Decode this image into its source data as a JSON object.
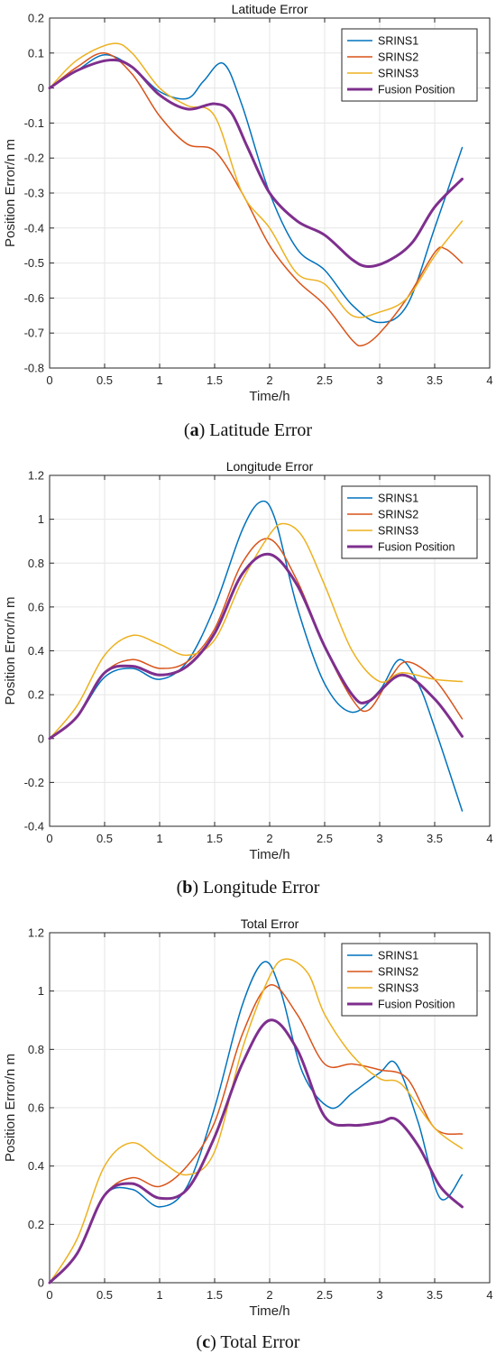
{
  "chart_data": [
    {
      "type": "line",
      "title": "Latitude Error",
      "xlabel": "Time/h",
      "ylabel": "Position Error/n m",
      "xlim": [
        0,
        4
      ],
      "ylim": [
        -0.8,
        0.2
      ],
      "xticks": [
        "0",
        "0.5",
        "1",
        "1.5",
        "2",
        "2.5",
        "3",
        "3.5",
        "4"
      ],
      "yticks": [
        "-0.8",
        "-0.7",
        "-0.6",
        "-0.5",
        "-0.4",
        "-0.3",
        "-0.2",
        "-0.1",
        "0",
        "0.1",
        "0.2"
      ],
      "grid": true,
      "legend": "top-right",
      "caption_letter": "a",
      "caption_text": " Latitude Error",
      "series": [
        {
          "name": "SRINS1",
          "color": "#0072BD",
          "x": [
            0,
            0.25,
            0.5,
            0.75,
            1,
            1.25,
            1.4,
            1.58,
            1.75,
            2,
            2.25,
            2.5,
            2.75,
            3,
            3.25,
            3.5,
            3.75
          ],
          "y": [
            0,
            0.05,
            0.095,
            0.06,
            -0.01,
            -0.03,
            0.02,
            0.07,
            -0.05,
            -0.3,
            -0.46,
            -0.52,
            -0.62,
            -0.67,
            -0.62,
            -0.4,
            -0.17
          ]
        },
        {
          "name": "SRINS2",
          "color": "#D95319",
          "x": [
            0,
            0.25,
            0.5,
            0.75,
            1,
            1.25,
            1.5,
            1.75,
            2,
            2.25,
            2.5,
            2.75,
            2.85,
            3,
            3.25,
            3.5,
            3.6,
            3.75
          ],
          "y": [
            0,
            0.06,
            0.1,
            0.04,
            -0.08,
            -0.16,
            -0.18,
            -0.3,
            -0.45,
            -0.55,
            -0.62,
            -0.72,
            -0.735,
            -0.7,
            -0.6,
            -0.47,
            -0.46,
            -0.5
          ]
        },
        {
          "name": "SRINS3",
          "color": "#EDB120",
          "x": [
            0,
            0.25,
            0.57,
            0.75,
            1,
            1.25,
            1.5,
            1.75,
            2,
            2.25,
            2.5,
            2.75,
            3,
            3.25,
            3.5,
            3.75
          ],
          "y": [
            0,
            0.08,
            0.127,
            0.1,
            0,
            -0.05,
            -0.08,
            -0.3,
            -0.4,
            -0.53,
            -0.56,
            -0.65,
            -0.64,
            -0.6,
            -0.48,
            -0.38
          ]
        },
        {
          "name": "Fusion Position",
          "color": "#7E2F8E",
          "x": [
            0,
            0.25,
            0.55,
            0.75,
            1,
            1.25,
            1.5,
            1.65,
            1.8,
            2,
            2.25,
            2.5,
            2.75,
            2.9,
            3.1,
            3.3,
            3.5,
            3.75
          ],
          "y": [
            0,
            0.05,
            0.08,
            0.06,
            -0.02,
            -0.06,
            -0.045,
            -0.07,
            -0.17,
            -0.3,
            -0.38,
            -0.42,
            -0.49,
            -0.51,
            -0.49,
            -0.44,
            -0.34,
            -0.26
          ]
        }
      ]
    },
    {
      "type": "line",
      "title": "Longitude Error",
      "xlabel": "Time/h",
      "ylabel": "Position Error/n m",
      "xlim": [
        0,
        4
      ],
      "ylim": [
        -0.4,
        1.2
      ],
      "xticks": [
        "0",
        "0.5",
        "1",
        "1.5",
        "2",
        "2.5",
        "3",
        "3.5",
        "4"
      ],
      "yticks": [
        "-0.4",
        "-0.2",
        "0",
        "0.2",
        "0.4",
        "0.6",
        "0.8",
        "1",
        "1.2"
      ],
      "grid": true,
      "legend": "top-right",
      "caption_letter": "b",
      "caption_text": " Longitude Error",
      "series": [
        {
          "name": "SRINS1",
          "color": "#0072BD",
          "x": [
            0,
            0.25,
            0.5,
            0.75,
            1,
            1.25,
            1.5,
            1.75,
            1.92,
            2.05,
            2.25,
            2.5,
            2.75,
            3,
            3.18,
            3.35,
            3.5,
            3.75
          ],
          "y": [
            0,
            0.1,
            0.28,
            0.32,
            0.27,
            0.35,
            0.6,
            0.95,
            1.08,
            1.0,
            0.6,
            0.25,
            0.12,
            0.22,
            0.36,
            0.25,
            0.05,
            -0.33
          ]
        },
        {
          "name": "SRINS2",
          "color": "#D95319",
          "x": [
            0,
            0.25,
            0.5,
            0.75,
            1,
            1.25,
            1.5,
            1.75,
            2,
            2.25,
            2.5,
            2.75,
            2.9,
            3.1,
            3.25,
            3.5,
            3.75
          ],
          "y": [
            0,
            0.1,
            0.3,
            0.36,
            0.32,
            0.35,
            0.5,
            0.8,
            0.91,
            0.72,
            0.42,
            0.18,
            0.13,
            0.28,
            0.35,
            0.27,
            0.09
          ]
        },
        {
          "name": "SRINS3",
          "color": "#EDB120",
          "x": [
            0,
            0.25,
            0.5,
            0.75,
            1,
            1.25,
            1.5,
            1.75,
            2,
            2.13,
            2.3,
            2.5,
            2.75,
            3,
            3.2,
            3.5,
            3.75
          ],
          "y": [
            0,
            0.15,
            0.38,
            0.47,
            0.43,
            0.38,
            0.45,
            0.72,
            0.93,
            0.98,
            0.92,
            0.7,
            0.4,
            0.26,
            0.3,
            0.27,
            0.26
          ]
        },
        {
          "name": "Fusion Position",
          "color": "#7E2F8E",
          "x": [
            0,
            0.25,
            0.5,
            0.75,
            1,
            1.25,
            1.5,
            1.75,
            2,
            2.25,
            2.5,
            2.75,
            2.9,
            3.2,
            3.5,
            3.75
          ],
          "y": [
            0,
            0.1,
            0.3,
            0.33,
            0.29,
            0.33,
            0.48,
            0.75,
            0.84,
            0.7,
            0.42,
            0.2,
            0.17,
            0.29,
            0.18,
            0.01
          ]
        }
      ]
    },
    {
      "type": "line",
      "title": "Total Error",
      "xlabel": "Time/h",
      "ylabel": "Position Error/n m",
      "xlim": [
        0,
        4
      ],
      "ylim": [
        0,
        1.2
      ],
      "xticks": [
        "0",
        "0.5",
        "1",
        "1.5",
        "2",
        "2.5",
        "3",
        "3.5",
        "4"
      ],
      "yticks": [
        "0",
        "0.2",
        "0.4",
        "0.6",
        "0.8",
        "1",
        "1.2"
      ],
      "grid": true,
      "legend": "top-right",
      "caption_letter": "c",
      "caption_text": " Total Error",
      "series": [
        {
          "name": "SRINS1",
          "color": "#0072BD",
          "x": [
            0,
            0.25,
            0.5,
            0.75,
            1,
            1.25,
            1.5,
            1.75,
            1.95,
            2.1,
            2.3,
            2.55,
            2.75,
            3,
            3.15,
            3.35,
            3.55,
            3.75
          ],
          "y": [
            0,
            0.1,
            0.3,
            0.32,
            0.26,
            0.33,
            0.6,
            0.95,
            1.1,
            1.0,
            0.72,
            0.6,
            0.65,
            0.72,
            0.75,
            0.55,
            0.29,
            0.37
          ]
        },
        {
          "name": "SRINS2",
          "color": "#D95319",
          "x": [
            0,
            0.25,
            0.5,
            0.75,
            1,
            1.25,
            1.5,
            1.75,
            2,
            2.25,
            2.5,
            2.75,
            3,
            3.25,
            3.5,
            3.75
          ],
          "y": [
            0,
            0.1,
            0.3,
            0.36,
            0.33,
            0.4,
            0.55,
            0.85,
            1.02,
            0.92,
            0.75,
            0.75,
            0.73,
            0.7,
            0.53,
            0.51
          ]
        },
        {
          "name": "SRINS3",
          "color": "#EDB120",
          "x": [
            0,
            0.25,
            0.5,
            0.75,
            1,
            1.25,
            1.5,
            1.75,
            2,
            2.15,
            2.35,
            2.5,
            2.75,
            3,
            3.2,
            3.5,
            3.75
          ],
          "y": [
            0,
            0.15,
            0.4,
            0.48,
            0.42,
            0.37,
            0.45,
            0.8,
            1.05,
            1.11,
            1.06,
            0.92,
            0.78,
            0.7,
            0.68,
            0.53,
            0.46
          ]
        },
        {
          "name": "Fusion Position",
          "color": "#7E2F8E",
          "x": [
            0,
            0.25,
            0.5,
            0.75,
            1,
            1.25,
            1.5,
            1.75,
            2,
            2.25,
            2.5,
            2.75,
            3,
            3.15,
            3.35,
            3.55,
            3.75
          ],
          "y": [
            0,
            0.1,
            0.3,
            0.34,
            0.29,
            0.32,
            0.5,
            0.75,
            0.9,
            0.8,
            0.57,
            0.54,
            0.55,
            0.56,
            0.47,
            0.33,
            0.26
          ]
        }
      ]
    }
  ]
}
